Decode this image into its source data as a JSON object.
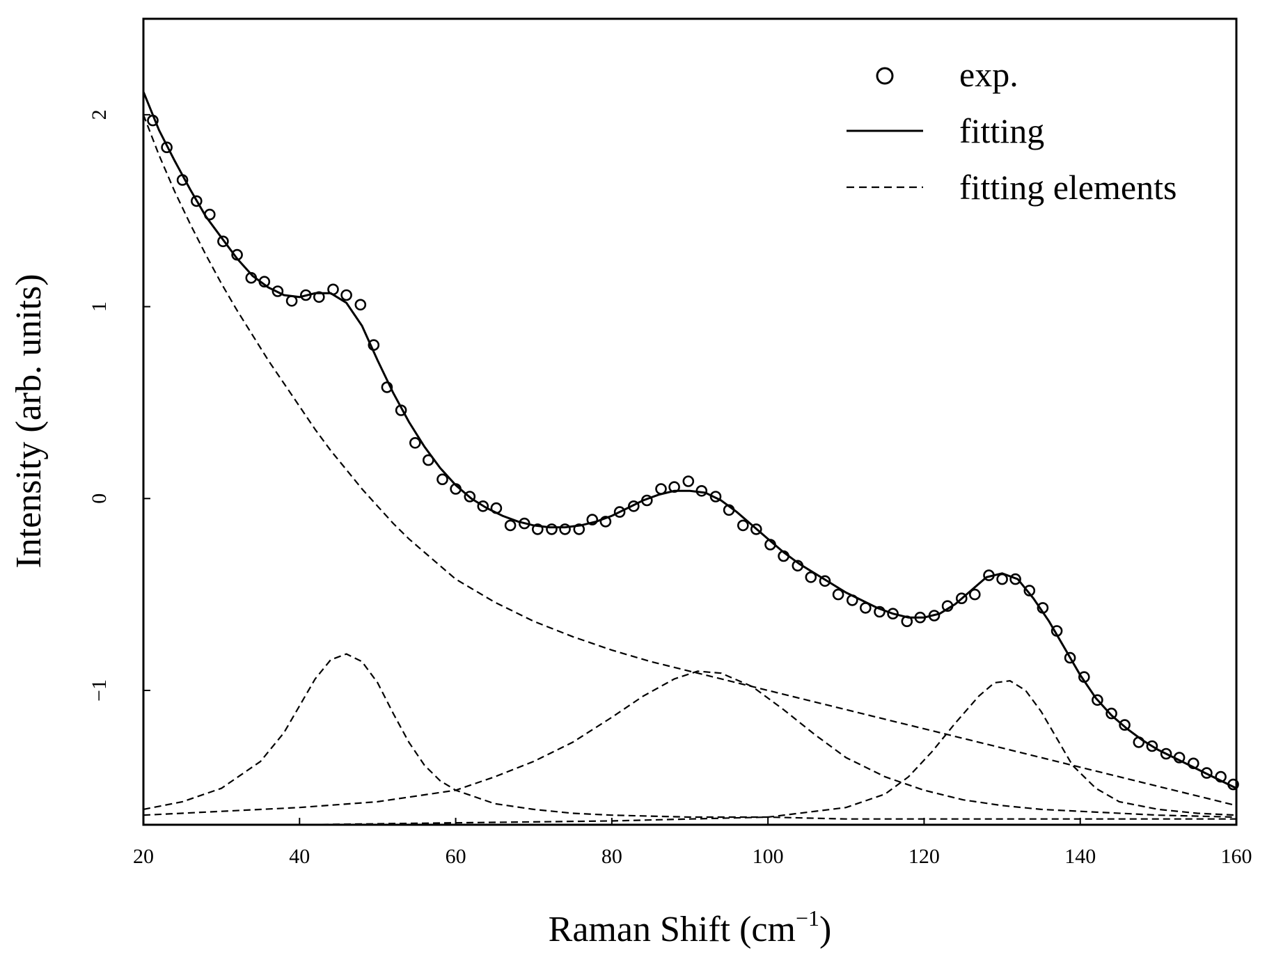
{
  "chart_data": {
    "type": "line",
    "title": "",
    "xlabel": "Raman Shift (cm",
    "xlabel_superscript": "−1",
    "xlabel_suffix": ")",
    "ylabel": "Intensity (arb. units)",
    "xlim": [
      20,
      160
    ],
    "ylim": [
      -1.7,
      2.5
    ],
    "x_ticks": [
      20,
      40,
      60,
      80,
      100,
      120,
      140,
      160
    ],
    "y_ticks": [
      -1,
      0,
      1,
      2
    ],
    "y_tick_labels": [
      "−1",
      "0",
      "1",
      "2"
    ],
    "grid": false,
    "legend_position": "top-right",
    "legend": [
      {
        "label": "exp.",
        "marker": "circle"
      },
      {
        "label": "fitting",
        "style": "solid"
      },
      {
        "label": "fitting elements",
        "style": "dashed"
      }
    ],
    "series": [
      {
        "name": "exp.",
        "style": "markers",
        "x": [
          21.2,
          23,
          25,
          26.8,
          28.5,
          30.2,
          32,
          33.8,
          35.5,
          37.2,
          39,
          40.8,
          42.5,
          44.3,
          46,
          47.8,
          49.5,
          51.2,
          53,
          54.8,
          56.5,
          58.3,
          60,
          61.8,
          63.5,
          65.2,
          67,
          68.8,
          70.5,
          72.3,
          74,
          75.8,
          77.5,
          79.2,
          81,
          82.8,
          84.5,
          86.3,
          88,
          89.8,
          91.5,
          93.3,
          95,
          96.8,
          98.5,
          100.3,
          102,
          103.8,
          105.5,
          107.3,
          109,
          110.8,
          112.5,
          114.3,
          116,
          117.8,
          119.5,
          121.3,
          123,
          124.8,
          126.5,
          128.3,
          130,
          131.7,
          133.5,
          135.2,
          137,
          138.7,
          140.5,
          142.2,
          144,
          145.7,
          147.5,
          149.2,
          151,
          152.7,
          154.5,
          156.2,
          158,
          159.6
        ],
        "y": [
          1.97,
          1.83,
          1.66,
          1.55,
          1.48,
          1.34,
          1.27,
          1.15,
          1.13,
          1.08,
          1.03,
          1.06,
          1.05,
          1.09,
          1.06,
          1.01,
          0.8,
          0.58,
          0.46,
          0.29,
          0.2,
          0.1,
          0.05,
          0.01,
          -0.04,
          -0.05,
          -0.14,
          -0.13,
          -0.16,
          -0.16,
          -0.16,
          -0.16,
          -0.11,
          -0.12,
          -0.07,
          -0.04,
          -0.01,
          0.05,
          0.06,
          0.09,
          0.04,
          0.01,
          -0.06,
          -0.14,
          -0.16,
          -0.24,
          -0.3,
          -0.35,
          -0.41,
          -0.43,
          -0.5,
          -0.53,
          -0.57,
          -0.59,
          -0.6,
          -0.64,
          -0.62,
          -0.61,
          -0.56,
          -0.52,
          -0.5,
          -0.4,
          -0.42,
          -0.42,
          -0.48,
          -0.57,
          -0.69,
          -0.83,
          -0.93,
          -1.05,
          -1.12,
          -1.18,
          -1.27,
          -1.29,
          -1.33,
          -1.35,
          -1.38,
          -1.43,
          -1.45,
          -1.49
        ]
      },
      {
        "name": "fitting",
        "style": "solid",
        "x": [
          20,
          22,
          24,
          26,
          28,
          30,
          32,
          34,
          36,
          38,
          40,
          42,
          44,
          46,
          48,
          50,
          52,
          54,
          56,
          58,
          60,
          62,
          64,
          66,
          68,
          70,
          72,
          74,
          76,
          78,
          80,
          82,
          84,
          86,
          88,
          90,
          92,
          94,
          96,
          98,
          100,
          102,
          104,
          106,
          108,
          110,
          112,
          114,
          116,
          118,
          120,
          122,
          124,
          126,
          128,
          130,
          132,
          134,
          136,
          138,
          140,
          142,
          144,
          146,
          148,
          150,
          152,
          154,
          156,
          158,
          160
        ],
        "y": [
          2.12,
          1.92,
          1.76,
          1.61,
          1.47,
          1.36,
          1.25,
          1.16,
          1.1,
          1.06,
          1.05,
          1.07,
          1.07,
          1.02,
          0.9,
          0.72,
          0.55,
          0.4,
          0.27,
          0.16,
          0.07,
          0.0,
          -0.05,
          -0.09,
          -0.12,
          -0.14,
          -0.15,
          -0.15,
          -0.14,
          -0.12,
          -0.09,
          -0.05,
          -0.01,
          0.02,
          0.04,
          0.04,
          0.03,
          -0.01,
          -0.07,
          -0.14,
          -0.21,
          -0.28,
          -0.34,
          -0.39,
          -0.44,
          -0.49,
          -0.53,
          -0.57,
          -0.6,
          -0.62,
          -0.62,
          -0.6,
          -0.55,
          -0.48,
          -0.41,
          -0.39,
          -0.42,
          -0.52,
          -0.64,
          -0.78,
          -0.92,
          -1.04,
          -1.13,
          -1.2,
          -1.26,
          -1.31,
          -1.35,
          -1.39,
          -1.43,
          -1.47,
          -1.51
        ]
      },
      {
        "name": "fitting elements",
        "style": "dashed",
        "components": [
          {
            "x": [
              20,
              22,
              24,
              26,
              28,
              30,
              32,
              34,
              36,
              38,
              40,
              42,
              44,
              46,
              48,
              50,
              52,
              54,
              56,
              58,
              60,
              65,
              70,
              75,
              80,
              85,
              90,
              95,
              100,
              105,
              110,
              115,
              120,
              125,
              130,
              135,
              140,
              145,
              150,
              155,
              160
            ],
            "y": [
              2.0,
              1.79,
              1.6,
              1.43,
              1.27,
              1.12,
              0.98,
              0.85,
              0.72,
              0.6,
              0.48,
              0.36,
              0.25,
              0.15,
              0.05,
              -0.04,
              -0.13,
              -0.21,
              -0.28,
              -0.35,
              -0.42,
              -0.54,
              -0.64,
              -0.72,
              -0.79,
              -0.85,
              -0.9,
              -0.95,
              -1.0,
              -1.05,
              -1.1,
              -1.15,
              -1.2,
              -1.25,
              -1.3,
              -1.35,
              -1.4,
              -1.45,
              -1.5,
              -1.55,
              -1.6
            ]
          },
          {
            "x": [
              20,
              25,
              30,
              35,
              38,
              40,
              42,
              44,
              46,
              48,
              50,
              52,
              54,
              56,
              58,
              60,
              65,
              70,
              75,
              80,
              90,
              100,
              110,
              120,
              130,
              140,
              150,
              160
            ],
            "y": [
              -1.62,
              -1.58,
              -1.51,
              -1.37,
              -1.22,
              -1.08,
              -0.94,
              -0.84,
              -0.81,
              -0.85,
              -0.96,
              -1.12,
              -1.27,
              -1.39,
              -1.47,
              -1.52,
              -1.59,
              -1.62,
              -1.64,
              -1.65,
              -1.66,
              -1.66,
              -1.67,
              -1.67,
              -1.67,
              -1.67,
              -1.67,
              -1.67
            ]
          },
          {
            "x": [
              20,
              30,
              40,
              50,
              60,
              65,
              70,
              75,
              80,
              84,
              88,
              91,
              94,
              98,
              102,
              106,
              110,
              115,
              120,
              125,
              130,
              135,
              140,
              150,
              160
            ],
            "y": [
              -1.65,
              -1.63,
              -1.61,
              -1.58,
              -1.52,
              -1.45,
              -1.37,
              -1.27,
              -1.14,
              -1.03,
              -0.94,
              -0.9,
              -0.91,
              -0.98,
              -1.1,
              -1.23,
              -1.35,
              -1.45,
              -1.52,
              -1.57,
              -1.6,
              -1.62,
              -1.63,
              -1.65,
              -1.66
            ]
          },
          {
            "x": [
              20,
              40,
              60,
              80,
              90,
              100,
              110,
              115,
              118,
              121,
              124,
              127,
              129,
              131,
              133,
              135,
              137,
              139,
              142,
              145,
              150,
              155,
              160
            ],
            "y": [
              -1.7,
              -1.7,
              -1.69,
              -1.68,
              -1.67,
              -1.66,
              -1.61,
              -1.54,
              -1.45,
              -1.32,
              -1.17,
              -1.03,
              -0.96,
              -0.95,
              -1.0,
              -1.11,
              -1.25,
              -1.39,
              -1.51,
              -1.58,
              -1.62,
              -1.64,
              -1.65
            ]
          }
        ]
      }
    ]
  }
}
